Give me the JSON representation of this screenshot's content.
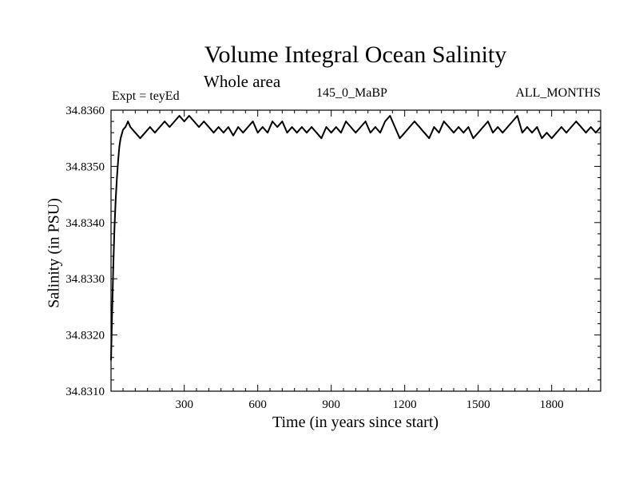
{
  "chart_data": {
    "type": "line",
    "title": "Volume Integral Ocean Salinity",
    "subtitle": "Whole area",
    "annotations": {
      "left": "Expt = teyEd",
      "center": "145_0_MaBP",
      "right": "ALL_MONTHS"
    },
    "xlabel": "Time (in years since start)",
    "ylabel": "Salinity (in PSU)",
    "xlim": [
      1,
      2000
    ],
    "ylim": [
      34.831,
      34.836
    ],
    "xticks": [
      300,
      600,
      900,
      1200,
      1500,
      1800
    ],
    "xtick_labels": [
      "300",
      "600",
      "900",
      "1200",
      "1500",
      "1800"
    ],
    "yticks": [
      34.831,
      34.832,
      34.833,
      34.834,
      34.835,
      34.836
    ],
    "ytick_labels": [
      "34.8310",
      "34.8320",
      "34.8330",
      "34.8340",
      "34.8350",
      "34.8360"
    ],
    "grid": false,
    "series": [
      {
        "name": "Salinity",
        "color": "#000000",
        "x": [
          1,
          5,
          10,
          15,
          20,
          25,
          30,
          35,
          40,
          50,
          60,
          70,
          80,
          100,
          120,
          140,
          160,
          180,
          200,
          220,
          240,
          260,
          280,
          300,
          320,
          340,
          360,
          380,
          400,
          420,
          440,
          460,
          480,
          500,
          520,
          540,
          560,
          580,
          600,
          620,
          640,
          660,
          680,
          700,
          720,
          740,
          760,
          780,
          800,
          820,
          840,
          860,
          880,
          900,
          920,
          940,
          960,
          980,
          1000,
          1020,
          1040,
          1060,
          1080,
          1100,
          1120,
          1140,
          1160,
          1180,
          1200,
          1220,
          1240,
          1260,
          1280,
          1300,
          1320,
          1340,
          1360,
          1380,
          1400,
          1420,
          1440,
          1460,
          1480,
          1500,
          1520,
          1540,
          1560,
          1580,
          1600,
          1620,
          1640,
          1660,
          1680,
          1700,
          1720,
          1740,
          1760,
          1780,
          1800,
          1820,
          1840,
          1860,
          1880,
          1900,
          1920,
          1940,
          1960,
          1980,
          2000
        ],
        "values": [
          34.83155,
          34.8323,
          34.8332,
          34.8339,
          34.8344,
          34.8348,
          34.8351,
          34.83535,
          34.8355,
          34.83565,
          34.8357,
          34.8358,
          34.8357,
          34.8356,
          34.8355,
          34.8356,
          34.8357,
          34.8356,
          34.8357,
          34.8358,
          34.8357,
          34.8358,
          34.8359,
          34.8358,
          34.8359,
          34.8358,
          34.8357,
          34.8358,
          34.8357,
          34.8356,
          34.8357,
          34.8356,
          34.8357,
          34.83555,
          34.8357,
          34.8356,
          34.8357,
          34.8358,
          34.8356,
          34.8357,
          34.8356,
          34.8358,
          34.8357,
          34.8358,
          34.8356,
          34.8357,
          34.8356,
          34.8357,
          34.8356,
          34.8357,
          34.8356,
          34.8355,
          34.8357,
          34.8356,
          34.8357,
          34.8356,
          34.8358,
          34.8357,
          34.8356,
          34.8357,
          34.8358,
          34.8356,
          34.8357,
          34.8356,
          34.8358,
          34.8359,
          34.8357,
          34.8355,
          34.8356,
          34.8357,
          34.8358,
          34.8357,
          34.8356,
          34.8355,
          34.8357,
          34.8356,
          34.8358,
          34.8357,
          34.8356,
          34.8357,
          34.8356,
          34.8357,
          34.8355,
          34.8356,
          34.8357,
          34.8358,
          34.8356,
          34.8357,
          34.8356,
          34.8357,
          34.8358,
          34.8359,
          34.8356,
          34.8357,
          34.8356,
          34.8357,
          34.8355,
          34.8356,
          34.8355,
          34.8356,
          34.8357,
          34.8356,
          34.8357,
          34.8358,
          34.8357,
          34.8356,
          34.8357,
          34.8356,
          34.8357
        ]
      }
    ]
  }
}
